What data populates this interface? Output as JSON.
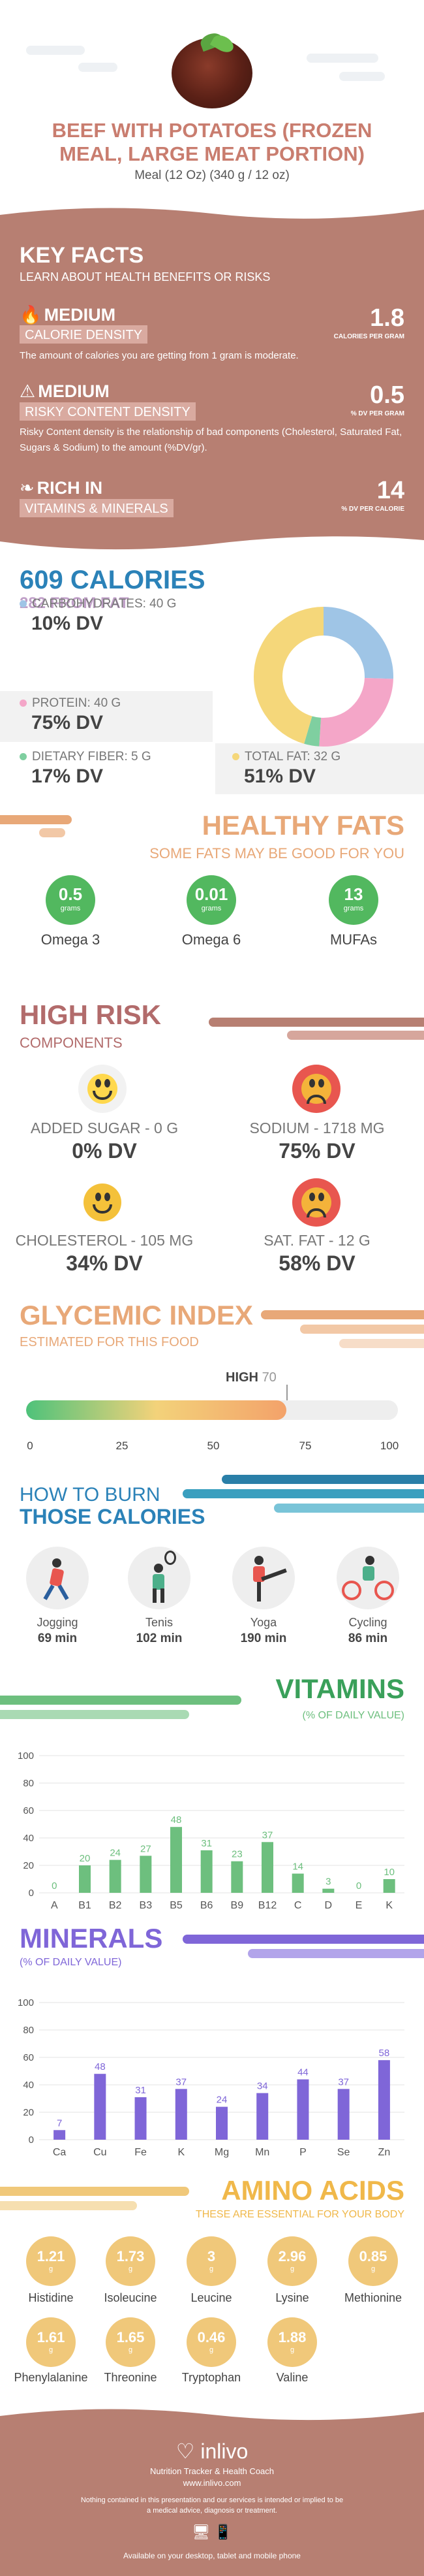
{
  "header": {
    "title": "BEEF WITH POTATOES (FROZEN MEAL, LARGE MEAT PORTION)",
    "serving": "Meal (12 Oz) (340 g / 12 oz)"
  },
  "key_facts": {
    "title": "KEY FACTS",
    "subtitle": "LEARN ABOUT HEALTH BENEFITS OR RISKS",
    "calorie_density": {
      "level": "MEDIUM",
      "label": "CALORIE DENSITY",
      "value": "1.8",
      "unit": "CALORIES PER GRAM",
      "description": "The amount of calories you are getting from 1 gram is moderate."
    },
    "risky_density": {
      "level": "MEDIUM",
      "label": "RISKY CONTENT DENSITY",
      "value": "0.5",
      "unit": "% DV PER GRAM",
      "description": "Risky Content density is the relationship of bad components (Cholesterol, Saturated Fat, Sugars & Sodium) to the amount (%DV/gr)."
    },
    "vitamins_minerals": {
      "level": "RICH  IN",
      "label": "VITAMINS & MINERALS",
      "value": "14",
      "unit": "% DV PER CALORIE"
    }
  },
  "calories": {
    "title": "609 CALORIES",
    "from_fat": "282 FROM FAT",
    "carbs_label": "CARBOHYDRATES: 40 g",
    "carbs_dv": "10% DV",
    "protein_label": "PROTEIN: 40 g",
    "protein_dv": "75% DV",
    "fiber_label": "DIETARY FIBER: 5 g",
    "fiber_dv": "17% DV",
    "fat_label": "TOTAL FAT: 32 g",
    "fat_dv": "51% DV",
    "colors": {
      "carbs": "#9fc5e6",
      "protein": "#f4a6c8",
      "fiber": "#7fcfa0",
      "fat": "#f5d77a"
    },
    "donut": [
      {
        "key": "carbs",
        "value": 25.5
      },
      {
        "key": "protein",
        "value": 25.5
      },
      {
        "key": "fiber",
        "value": 3.5
      },
      {
        "key": "fat",
        "value": 45.5
      }
    ]
  },
  "healthy_fats": {
    "title": "HEALTHY FATS",
    "subtitle": "SOME FATS MAY BE GOOD FOR YOU",
    "items": [
      {
        "name": "Omega 3",
        "value": "0.5",
        "unit": "grams"
      },
      {
        "name": "Omega 6",
        "value": "0.01",
        "unit": "grams"
      },
      {
        "name": "MUFAs",
        "value": "13",
        "unit": "grams"
      }
    ]
  },
  "high_risk": {
    "title": "HIGH RISK",
    "subtitle": "COMPONENTS",
    "items": [
      {
        "label": "ADDED SUGAR - 0 g",
        "dv": "0% DV"
      },
      {
        "label": "SODIUM - 1718 mg",
        "dv": "75% DV"
      },
      {
        "label": "CHOLESTEROL - 105 mg",
        "dv": "34% DV"
      },
      {
        "label": "SAT. FAT - 12 g",
        "dv": "58% DV"
      }
    ]
  },
  "glycemic": {
    "title": "GLYCEMIC INDEX",
    "subtitle": "ESTIMATED FOR THIS FOOD",
    "level": "HIGH",
    "value": "70",
    "fraction": 0.7,
    "ticks": [
      "0",
      "25",
      "50",
      "75",
      "100"
    ]
  },
  "burn": {
    "title_top": "HOW TO BURN",
    "title_bottom": "THOSE CALORIES",
    "items": [
      {
        "name": "Jogging",
        "min": "69 min"
      },
      {
        "name": "Tenis",
        "min": "102 min"
      },
      {
        "name": "Yoga",
        "min": "190 min"
      },
      {
        "name": "Cycling",
        "min": "86 min"
      }
    ]
  },
  "vitamins": {
    "title": "VITAMINS",
    "subtitle": "(% OF DAILY VALUE)",
    "color": "#6dbf7e"
  },
  "minerals": {
    "title": "MINERALS",
    "subtitle": "(% OF DAILY VALUE)",
    "color": "#7f66d8"
  },
  "amino": {
    "title": "AMINO ACIDS",
    "subtitle": "THESE ARE ESSENTIAL FOR YOUR BODY",
    "unit": "g",
    "items": [
      {
        "name": "Histidine",
        "value": "1.21"
      },
      {
        "name": "Isoleucine",
        "value": "1.73"
      },
      {
        "name": "Leucine",
        "value": "3"
      },
      {
        "name": "Lysine",
        "value": "2.96"
      },
      {
        "name": "Methionine",
        "value": "0.85"
      },
      {
        "name": "Phenylalanine",
        "value": "1.61"
      },
      {
        "name": "Threonine",
        "value": "1.65"
      },
      {
        "name": "Tryptophan",
        "value": "0.46"
      },
      {
        "name": "Valine",
        "value": "1.88"
      }
    ]
  },
  "footer": {
    "brand": "inlivo",
    "tagline": "Nutrition Tracker & Health Coach",
    "url": "www.inlivo.com",
    "disclaimer": "Nothing contained in this presentation and our services is intended or implied to be a medical advice, diagnosis or treatment.",
    "available": "Available on your desktop, tablet and mobile phone"
  },
  "chart_data": [
    {
      "type": "bar",
      "categories": [
        "A",
        "B1",
        "B2",
        "B3",
        "B5",
        "B6",
        "B9",
        "B12",
        "C",
        "D",
        "E",
        "K"
      ],
      "values": [
        0,
        20,
        24,
        27,
        48,
        31,
        23,
        37,
        14,
        3,
        0,
        10
      ],
      "ylim": [
        0,
        100
      ],
      "yticks": [
        0,
        20,
        40,
        60,
        80,
        100
      ]
    },
    {
      "type": "bar",
      "categories": [
        "Ca",
        "Cu",
        "Fe",
        "K",
        "Mg",
        "Mn",
        "P",
        "Se",
        "Zn"
      ],
      "values": [
        7,
        48,
        31,
        37,
        24,
        34,
        44,
        37,
        58
      ],
      "ylim": [
        0,
        100
      ],
      "yticks": [
        0,
        20,
        40,
        60,
        80,
        100
      ]
    }
  ]
}
